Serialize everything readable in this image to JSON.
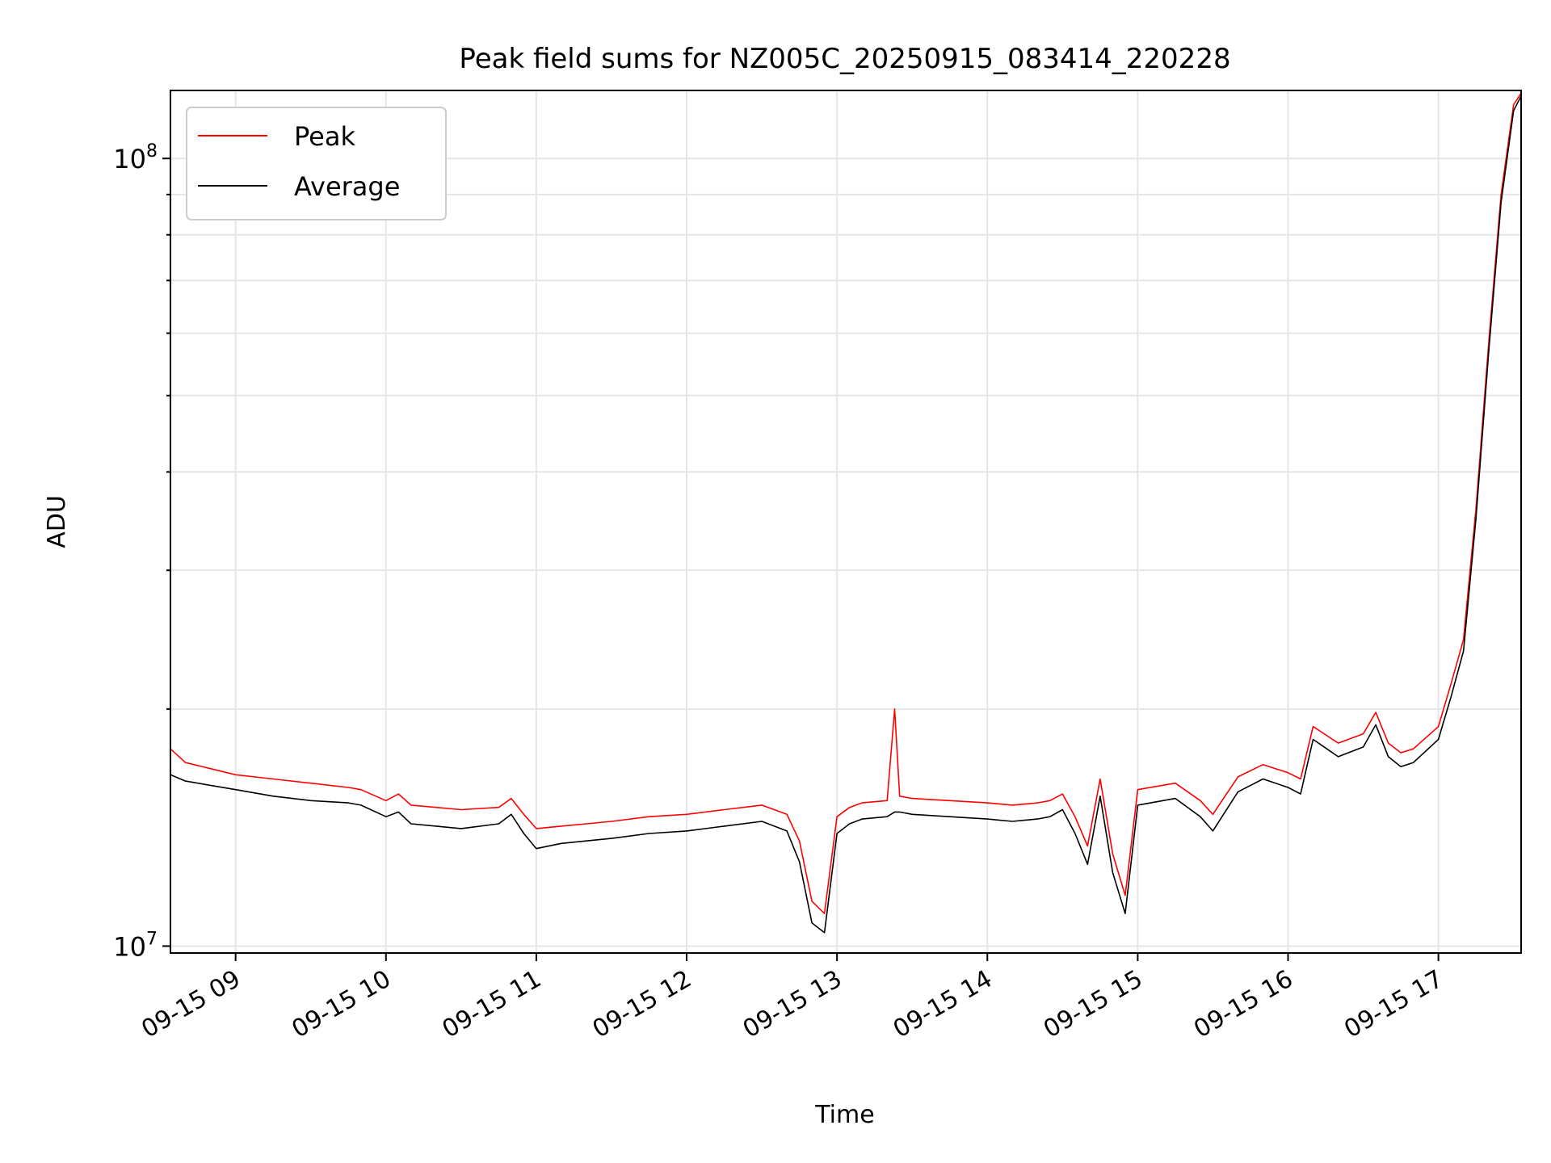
{
  "chart_data": {
    "type": "line",
    "title": "Peak field sums for NZ005C_20250915_083414_220228",
    "xlabel": "Time",
    "ylabel": "ADU",
    "yscale": "log",
    "ylim": [
      9800000,
      122000000
    ],
    "xlim": [
      "2025-09-15 08:34",
      "2025-09-15 17:33"
    ],
    "x_tick_labels": [
      "09-15 09",
      "09-15 10",
      "09-15 11",
      "09-15 12",
      "09-15 13",
      "09-15 14",
      "09-15 15",
      "09-15 16",
      "09-15 17"
    ],
    "y_tick_labels": [
      {
        "base": "10",
        "exp": "7"
      },
      {
        "base": "10",
        "exp": "8"
      }
    ],
    "grid": true,
    "legend_position": "upper-left",
    "x": [
      "2025-09-15 08:34",
      "2025-09-15 08:40",
      "2025-09-15 08:50",
      "2025-09-15 09:00",
      "2025-09-15 09:15",
      "2025-09-15 09:30",
      "2025-09-15 09:45",
      "2025-09-15 09:50",
      "2025-09-15 10:00",
      "2025-09-15 10:05",
      "2025-09-15 10:10",
      "2025-09-15 10:20",
      "2025-09-15 10:30",
      "2025-09-15 10:45",
      "2025-09-15 10:50",
      "2025-09-15 10:55",
      "2025-09-15 11:00",
      "2025-09-15 11:10",
      "2025-09-15 11:20",
      "2025-09-15 11:30",
      "2025-09-15 11:45",
      "2025-09-15 12:00",
      "2025-09-15 12:15",
      "2025-09-15 12:30",
      "2025-09-15 12:40",
      "2025-09-15 12:45",
      "2025-09-15 12:50",
      "2025-09-15 12:55",
      "2025-09-15 13:00",
      "2025-09-15 13:05",
      "2025-09-15 13:10",
      "2025-09-15 13:20",
      "2025-09-15 13:23",
      "2025-09-15 13:25",
      "2025-09-15 13:30",
      "2025-09-15 13:45",
      "2025-09-15 14:00",
      "2025-09-15 14:10",
      "2025-09-15 14:20",
      "2025-09-15 14:25",
      "2025-09-15 14:30",
      "2025-09-15 14:35",
      "2025-09-15 14:40",
      "2025-09-15 14:45",
      "2025-09-15 14:50",
      "2025-09-15 14:55",
      "2025-09-15 15:00",
      "2025-09-15 15:15",
      "2025-09-15 15:25",
      "2025-09-15 15:30",
      "2025-09-15 15:40",
      "2025-09-15 15:50",
      "2025-09-15 16:00",
      "2025-09-15 16:05",
      "2025-09-15 16:10",
      "2025-09-15 16:20",
      "2025-09-15 16:30",
      "2025-09-15 16:35",
      "2025-09-15 16:40",
      "2025-09-15 16:45",
      "2025-09-15 16:50",
      "2025-09-15 17:00",
      "2025-09-15 17:05",
      "2025-09-15 17:10",
      "2025-09-15 17:15",
      "2025-09-15 17:20",
      "2025-09-15 17:25",
      "2025-09-15 17:30",
      "2025-09-15 17:33"
    ],
    "series": [
      {
        "name": "Peak",
        "color": "#ff0000",
        "values": [
          17800000,
          17100000,
          16800000,
          16500000,
          16300000,
          16100000,
          15900000,
          15800000,
          15300000,
          15600000,
          15100000,
          15000000,
          14900000,
          15000000,
          15400000,
          14700000,
          14100000,
          14200000,
          14300000,
          14400000,
          14600000,
          14700000,
          14900000,
          15100000,
          14700000,
          13600000,
          11400000,
          11000000,
          14600000,
          15000000,
          15200000,
          15300000,
          20000000,
          15500000,
          15400000,
          15300000,
          15200000,
          15100000,
          15200000,
          15300000,
          15600000,
          14600000,
          13400000,
          16300000,
          13100000,
          11600000,
          15800000,
          16100000,
          15300000,
          14700000,
          16400000,
          17000000,
          16600000,
          16300000,
          19000000,
          18100000,
          18600000,
          19800000,
          18100000,
          17600000,
          17800000,
          19000000,
          21500000,
          24500000,
          36000000,
          58000000,
          90000000,
          117000000,
          121000000
        ]
      },
      {
        "name": "Average",
        "color": "#000000",
        "values": [
          16500000,
          16200000,
          16000000,
          15800000,
          15500000,
          15300000,
          15200000,
          15100000,
          14600000,
          14800000,
          14300000,
          14200000,
          14100000,
          14300000,
          14700000,
          13900000,
          13300000,
          13500000,
          13600000,
          13700000,
          13900000,
          14000000,
          14200000,
          14400000,
          14000000,
          12800000,
          10700000,
          10400000,
          13900000,
          14300000,
          14500000,
          14600000,
          14800000,
          14800000,
          14700000,
          14600000,
          14500000,
          14400000,
          14500000,
          14600000,
          14900000,
          13900000,
          12700000,
          15500000,
          12400000,
          11000000,
          15100000,
          15400000,
          14600000,
          14000000,
          15700000,
          16300000,
          15900000,
          15600000,
          18300000,
          17400000,
          17900000,
          19100000,
          17400000,
          16900000,
          17100000,
          18300000,
          20700000,
          23700000,
          35000000,
          56500000,
          88000000,
          115000000,
          120000000
        ]
      }
    ]
  }
}
